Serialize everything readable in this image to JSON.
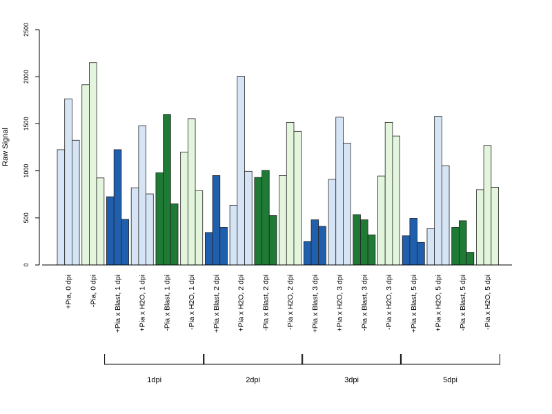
{
  "chart_data": {
    "type": "bar",
    "title": "",
    "ylabel": "Raw Signal",
    "xlabel": "",
    "ylim": [
      0,
      2500
    ],
    "yticks": [
      0,
      500,
      1000,
      1500,
      2000,
      2500
    ],
    "grid": false,
    "legend": "none",
    "colors": {
      "infected_plus": "#1f5fad",
      "control_plus": "#d6e5f5",
      "infected_minus": "#1f7a35",
      "control_minus": "#e3f5dc",
      "bar_stroke": "#222222"
    },
    "categories": [
      {
        "label": "+Pia, 0 dpi",
        "color": "control_plus",
        "values": [
          1225,
          1765,
          1325
        ]
      },
      {
        "label": "-Pia, 0 dpi",
        "color": "control_minus",
        "values": [
          1915,
          2150,
          925
        ]
      },
      {
        "label": "+Pia x Blast, 1 dpi",
        "color": "infected_plus",
        "values": [
          725,
          1225,
          485
        ]
      },
      {
        "label": "+Pia x H2O, 1 dpi",
        "color": "control_plus",
        "values": [
          820,
          1480,
          755
        ]
      },
      {
        "label": "-Pia x Blast, 1 dpi",
        "color": "infected_minus",
        "values": [
          980,
          1600,
          650
        ]
      },
      {
        "label": "-Pia x H2O, 1 dpi",
        "color": "control_minus",
        "values": [
          1200,
          1555,
          790
        ]
      },
      {
        "label": "+Pia x Blast, 2 dpi",
        "color": "infected_plus",
        "values": [
          345,
          950,
          400
        ]
      },
      {
        "label": "+Pia x H2O, 2 dpi",
        "color": "control_plus",
        "values": [
          635,
          2005,
          995
        ]
      },
      {
        "label": "-Pia x Blast, 2 dpi",
        "color": "infected_minus",
        "values": [
          930,
          1005,
          525
        ]
      },
      {
        "label": "-Pia x H2O, 2 dpi",
        "color": "control_minus",
        "values": [
          950,
          1515,
          1420
        ]
      },
      {
        "label": "+Pia x Blast, 3 dpi",
        "color": "infected_plus",
        "values": [
          250,
          480,
          410
        ]
      },
      {
        "label": "+Pia x H2O, 3 dpi",
        "color": "control_plus",
        "values": [
          910,
          1570,
          1295
        ]
      },
      {
        "label": "-Pia x Blast, 3 dpi",
        "color": "infected_minus",
        "values": [
          535,
          480,
          320
        ]
      },
      {
        "label": "-Pia x H2O, 3 dpi",
        "color": "control_minus",
        "values": [
          945,
          1515,
          1370
        ]
      },
      {
        "label": "+Pia x Blast, 5 dpi",
        "color": "infected_plus",
        "values": [
          310,
          495,
          240
        ]
      },
      {
        "label": "+Pia x H2O, 5 dpi",
        "color": "control_plus",
        "values": [
          385,
          1580,
          1055
        ]
      },
      {
        "label": "-Pia x Blast, 5 dpi",
        "color": "infected_minus",
        "values": [
          400,
          470,
          135
        ]
      },
      {
        "label": "-Pia x H2O, 5 dpi",
        "color": "control_minus",
        "values": [
          800,
          1270,
          825
        ]
      }
    ],
    "groups": [
      {
        "label": "1dpi",
        "from": 2,
        "to": 5
      },
      {
        "label": "2dpi",
        "from": 6,
        "to": 9
      },
      {
        "label": "3dpi",
        "from": 10,
        "to": 13
      },
      {
        "label": "5dpi",
        "from": 14,
        "to": 17
      }
    ]
  }
}
